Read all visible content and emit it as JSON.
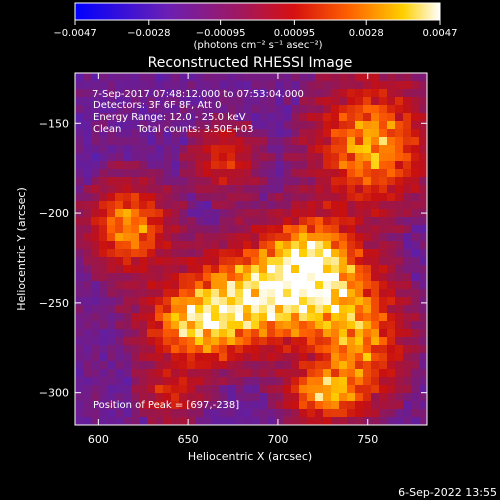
{
  "colorbar": {
    "ticks": [
      "-0.0047",
      "-0.0028",
      "-0.00095",
      "0.00095",
      "0.0028",
      "0.0047"
    ],
    "unit_label": "(photons cm⁻² s⁻¹ asec⁻²)"
  },
  "image": {
    "title": "Reconstructed RHESSI Image",
    "annotations": {
      "time_range": "7-Sep-2017 07:48:12.000 to 07:53:04.000",
      "detectors": "Detectors: 3F 6F 8F, Att 0",
      "energy_range": "Energy Range: 12.0 - 25.0 keV",
      "algorithm_counts": "Clean     Total counts: 3.50E+03",
      "peak_position": "Position of Peak = [697,-238]"
    },
    "footer_date": "6-Sep-2022 13:55"
  },
  "chart_data": {
    "type": "heatmap",
    "title": "Reconstructed RHESSI Image",
    "xlabel": "Heliocentric X (arcsec)",
    "ylabel": "Heliocentric Y (arcsec)",
    "xlim": [
      587,
      783
    ],
    "ylim": [
      -318,
      -122
    ],
    "x_ticks": [
      600,
      650,
      700,
      750
    ],
    "y_ticks": [
      -150,
      -200,
      -250,
      -300
    ],
    "color_scale": {
      "min": -0.0047,
      "max": 0.0047
    },
    "colors": [
      "#0000ff",
      "#5a1fb0",
      "#8a1860",
      "#c81010",
      "#ff6000",
      "#ffd000",
      "#ffffff"
    ],
    "peak": {
      "x": 697,
      "y": -238
    },
    "emission_sources": [
      {
        "x": 697,
        "y": -245,
        "sx": 28,
        "sy": 18,
        "amp": 1.0
      },
      {
        "x": 655,
        "y": -262,
        "sx": 18,
        "sy": 14,
        "amp": 0.8
      },
      {
        "x": 720,
        "y": -225,
        "sx": 16,
        "sy": 16,
        "amp": 0.75
      },
      {
        "x": 617,
        "y": -208,
        "sx": 14,
        "sy": 16,
        "amp": 0.7
      },
      {
        "x": 752,
        "y": -162,
        "sx": 20,
        "sy": 22,
        "amp": 0.75
      },
      {
        "x": 745,
        "y": -270,
        "sx": 16,
        "sy": 22,
        "amp": 0.65
      },
      {
        "x": 726,
        "y": -300,
        "sx": 14,
        "sy": 10,
        "amp": 0.7
      },
      {
        "x": 670,
        "y": -170,
        "sx": 12,
        "sy": 12,
        "amp": 0.4
      },
      {
        "x": 640,
        "y": -300,
        "sx": 12,
        "sy": 10,
        "amp": 0.35
      }
    ]
  }
}
